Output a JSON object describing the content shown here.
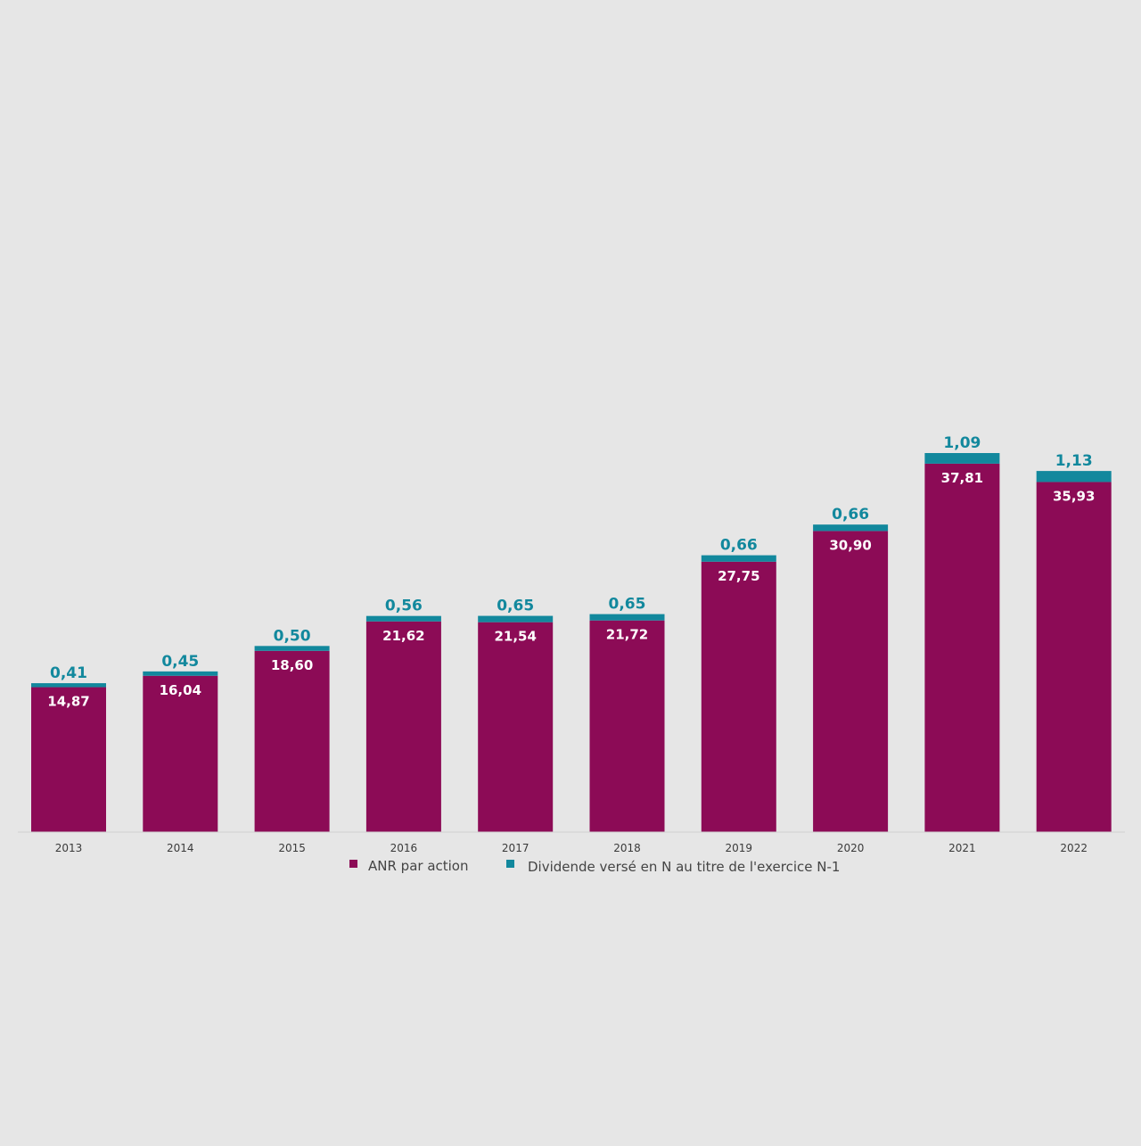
{
  "chart_data": {
    "type": "bar",
    "stacked": true,
    "categories": [
      "2013",
      "2014",
      "2015",
      "2016",
      "2017",
      "2018",
      "2019",
      "2020",
      "2021",
      "2022"
    ],
    "series": [
      {
        "name": "ANR par action",
        "color": "#8c0b56",
        "values": [
          14.87,
          16.04,
          18.6,
          21.62,
          21.54,
          21.72,
          27.75,
          30.9,
          37.81,
          35.93
        ],
        "labels": [
          "14,87",
          "16,04",
          "18,60",
          "21,62",
          "21,54",
          "21,72",
          "27,75",
          "30,90",
          "37,81",
          "35,93"
        ]
      },
      {
        "name": "Dividende versé en N au titre de l'exercice N-1",
        "color": "#12889d",
        "values": [
          0.41,
          0.45,
          0.5,
          0.56,
          0.65,
          0.65,
          0.66,
          0.66,
          1.09,
          1.13
        ],
        "labels": [
          "0,41",
          "0,45",
          "0,50",
          "0,56",
          "0,65",
          "0,65",
          "0,66",
          "0,66",
          "1,09",
          "1,13"
        ]
      }
    ],
    "ylim": [
      0,
      38.9
    ],
    "grid": false,
    "legend": "bottom-center"
  }
}
